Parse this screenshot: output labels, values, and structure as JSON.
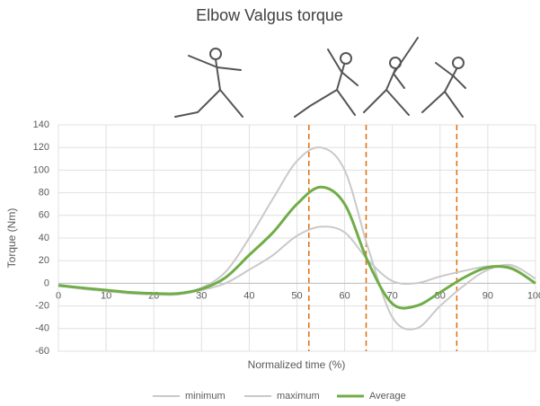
{
  "chart_data": {
    "type": "line",
    "title": "Elbow Valgus torque",
    "xlabel": "Normalized time (%)",
    "ylabel": "Torque (Nm)",
    "x": [
      0,
      5,
      10,
      15,
      20,
      25,
      30,
      35,
      40,
      45,
      50,
      55,
      60,
      65,
      70,
      75,
      80,
      85,
      90,
      95,
      100
    ],
    "series": [
      {
        "name": "minimum",
        "color": "#c9c9c9",
        "values": [
          -2,
          -5,
          -7,
          -9,
          -10,
          -10,
          -6,
          0,
          12,
          25,
          42,
          50,
          45,
          20,
          2,
          0,
          6,
          11,
          15,
          14,
          0
        ]
      },
      {
        "name": "maximum",
        "color": "#c9c9c9",
        "values": [
          -1,
          -4,
          -6,
          -8,
          -9,
          -9,
          -4,
          10,
          40,
          75,
          108,
          120,
          100,
          30,
          -30,
          -40,
          -20,
          -2,
          12,
          16,
          4
        ]
      },
      {
        "name": "Average",
        "color": "#70ad47",
        "values": [
          -2,
          -4,
          -6,
          -8,
          -9,
          -9,
          -5,
          5,
          25,
          45,
          70,
          85,
          70,
          18,
          -18,
          -20,
          -8,
          5,
          14,
          13,
          0
        ]
      }
    ],
    "phase_lines": [
      52.5,
      64.5,
      83.5
    ],
    "phase_color": "#e46c0a",
    "xlim": [
      0,
      100
    ],
    "xticks": [
      0,
      10,
      20,
      30,
      40,
      50,
      60,
      70,
      80,
      90,
      100
    ],
    "ylim": [
      -60,
      140
    ],
    "yticks": [
      -60,
      -40,
      -20,
      0,
      20,
      40,
      60,
      80,
      100,
      120,
      140
    ],
    "grid": true
  }
}
